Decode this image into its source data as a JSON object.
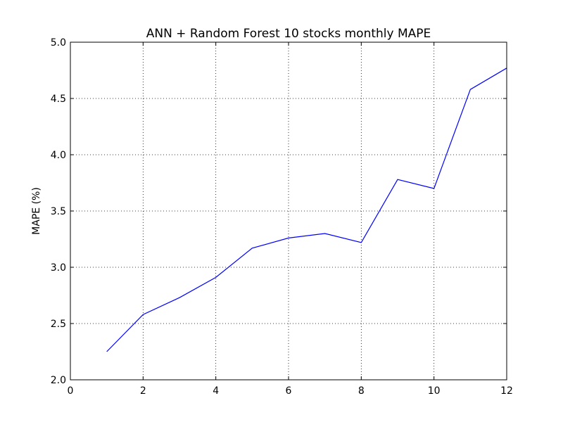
{
  "chart_data": {
    "type": "line",
    "title": "ANN + Random Forest 10 stocks monthly MAPE",
    "xlabel": "",
    "ylabel": "MAPE (%)",
    "xlim": [
      0,
      12
    ],
    "ylim": [
      2.0,
      5.0
    ],
    "xticks": [
      0,
      2,
      4,
      6,
      8,
      10,
      12
    ],
    "xtick_labels": [
      "0",
      "2",
      "4",
      "6",
      "8",
      "10",
      "12"
    ],
    "yticks": [
      2.0,
      2.5,
      3.0,
      3.5,
      4.0,
      4.5,
      5.0
    ],
    "ytick_labels": [
      "2.0",
      "2.5",
      "3.0",
      "3.5",
      "4.0",
      "4.5",
      "5.0"
    ],
    "grid": true,
    "series": [
      {
        "color": "#0000ff",
        "x": [
          1,
          2,
          3,
          4,
          5,
          6,
          7,
          8,
          9,
          10,
          11,
          12
        ],
        "y": [
          2.25,
          2.58,
          2.73,
          2.91,
          3.17,
          3.26,
          3.3,
          3.22,
          3.78,
          3.7,
          4.58,
          4.77
        ]
      }
    ]
  }
}
